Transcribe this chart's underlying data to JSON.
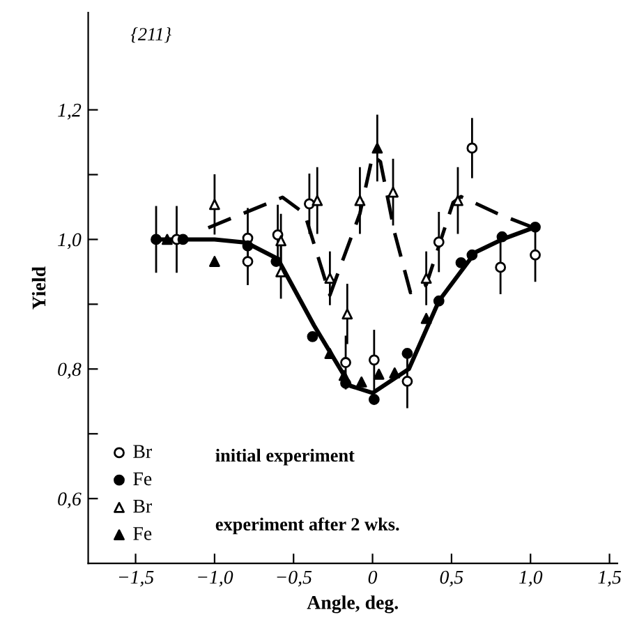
{
  "chart_data": {
    "type": "scatter",
    "xlabel": "Angle, deg.",
    "ylabel": "Yield",
    "annotations": [
      "{211}",
      "initial experiment",
      "experiment after 2 wks."
    ],
    "xlim": [
      -1.8,
      1.55
    ],
    "ylim": [
      0.5,
      1.35
    ],
    "xticks": [
      {
        "value": -1.5,
        "label": "−1,5"
      },
      {
        "value": -1.0,
        "label": "−1,0"
      },
      {
        "value": -0.5,
        "label": "−0,5"
      },
      {
        "value": 0,
        "label": "0"
      },
      {
        "value": 0.5,
        "label": "0,5"
      },
      {
        "value": 1.0,
        "label": "1,0"
      },
      {
        "value": 1.5,
        "label": "1,5"
      }
    ],
    "yticks": [
      {
        "value": 0.6,
        "label": "0,6"
      },
      {
        "value": 0.7,
        "label": null
      },
      {
        "value": 0.8,
        "label": "0,8"
      },
      {
        "value": 0.9,
        "label": null
      },
      {
        "value": 1.0,
        "label": "1,0"
      },
      {
        "value": 1.1,
        "label": null
      },
      {
        "value": 1.2,
        "label": "1,2"
      }
    ],
    "grid": false,
    "legend": "bottom left",
    "series": [
      {
        "type": "line",
        "color": "#000000",
        "line_style": "solid",
        "marker": "none",
        "x": [
          -1.37,
          -1.0,
          -0.8,
          -0.6,
          -0.37,
          -0.14,
          0.0,
          0.23,
          0.42,
          0.65,
          0.82,
          1.04
        ],
        "values": [
          1.0,
          1.0,
          0.995,
          0.97,
          0.867,
          0.774,
          0.763,
          0.8,
          0.905,
          0.98,
          1.0,
          1.02
        ]
      },
      {
        "type": "line",
        "color": "#000000",
        "line_style": "dashed",
        "marker": "none",
        "x": [
          -1.04,
          -0.57,
          -0.43,
          -0.27,
          -0.08,
          0.0,
          0.05,
          0.14,
          0.24,
          0.34,
          0.51,
          0.56,
          0.79,
          1.0
        ],
        "values": [
          1.018,
          1.065,
          1.04,
          0.914,
          1.04,
          1.129,
          1.12,
          1.01,
          0.918,
          0.93,
          1.057,
          1.066,
          1.04,
          1.02
        ]
      },
      {
        "name": "Br",
        "color": "#ffffff",
        "marker": "circle",
        "x": [
          -1.24,
          -0.79,
          -0.79,
          -0.6,
          -0.4,
          -0.17,
          0.01,
          0.22,
          0.42,
          0.63,
          0.81,
          1.03
        ],
        "values": [
          1.0,
          1.002,
          0.966,
          1.007,
          1.055,
          0.81,
          0.814,
          0.781,
          0.996,
          1.141,
          0.957,
          0.976
        ],
        "errors": [
          0.05,
          0.045,
          0.035,
          0.045,
          0.045,
          0.04,
          0.045,
          0.04,
          0.045,
          0.045,
          0.04,
          0.04
        ]
      },
      {
        "name": "Fe",
        "color": "#000000",
        "marker": "circle",
        "x": [
          -1.37,
          -1.2,
          -0.79,
          -0.61,
          -0.38,
          -0.17,
          0.01,
          0.22,
          0.42,
          0.56,
          0.63,
          0.82,
          1.03
        ],
        "values": [
          1.0,
          1.0,
          0.99,
          0.966,
          0.85,
          0.778,
          0.753,
          0.824,
          0.905,
          0.964,
          0.976,
          1.004,
          1.019
        ],
        "errors": [
          0.05,
          null,
          null,
          null,
          null,
          null,
          null,
          null,
          null,
          null,
          null,
          null,
          null
        ]
      },
      {
        "name": "Br",
        "color": "#ffffff",
        "marker": "triangle",
        "x": [
          -1.0,
          -0.58,
          -0.58,
          -0.35,
          -0.27,
          -0.16,
          -0.08,
          0.13,
          0.34,
          0.54
        ],
        "values": [
          1.054,
          0.998,
          0.95,
          1.06,
          0.94,
          0.885,
          1.06,
          1.073,
          0.94,
          1.06
        ],
        "errors": [
          0.045,
          0.04,
          0.04,
          0.05,
          0.04,
          0.045,
          0.05,
          0.05,
          0.04,
          0.05
        ]
      },
      {
        "name": "Fe",
        "color": "#000000",
        "marker": "triangle",
        "x": [
          -1.3,
          -1.0,
          -0.27,
          -0.18,
          -0.07,
          0.03,
          0.04,
          0.14,
          0.34
        ],
        "values": [
          1.0,
          0.966,
          0.824,
          0.79,
          0.78,
          1.141,
          0.792,
          0.794,
          0.878
        ],
        "errors": [
          null,
          null,
          null,
          null,
          null,
          0.05,
          null,
          null,
          null
        ]
      }
    ]
  }
}
